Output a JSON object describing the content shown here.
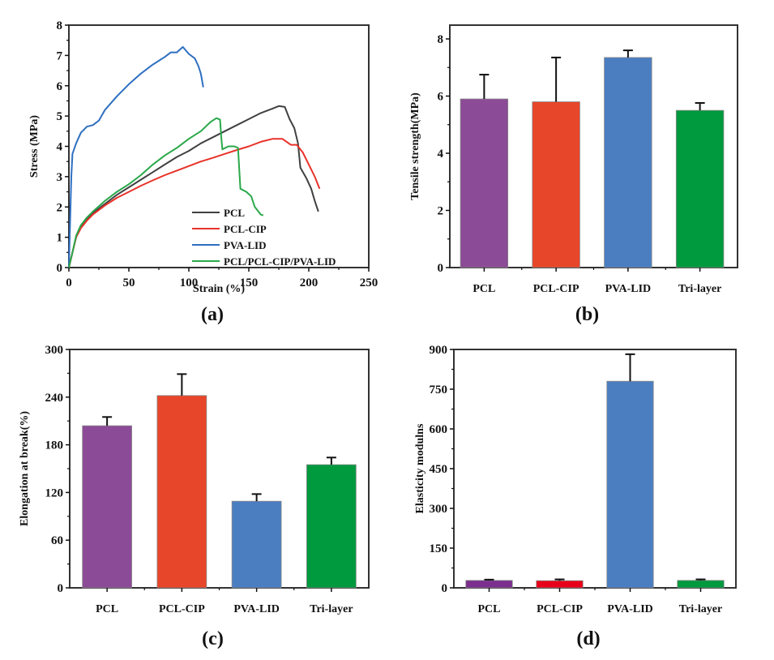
{
  "chart_data": [
    {
      "id": "a",
      "type": "line",
      "panel_label": "(a)",
      "xlabel": "Strain (%)",
      "ylabel": "Stress (MPa)",
      "xlim": [
        0,
        250
      ],
      "ylim": [
        0,
        8
      ],
      "xticks": [
        0,
        50,
        100,
        150,
        200,
        250
      ],
      "yticks": [
        0,
        1,
        2,
        3,
        4,
        5,
        6,
        7,
        8
      ],
      "legend_position": "bottom-right",
      "series": [
        {
          "name": "PCL",
          "color": "#404040",
          "points": [
            [
              0,
              0
            ],
            [
              3,
              0.5
            ],
            [
              6,
              1.0
            ],
            [
              10,
              1.35
            ],
            [
              15,
              1.6
            ],
            [
              20,
              1.8
            ],
            [
              30,
              2.1
            ],
            [
              40,
              2.4
            ],
            [
              50,
              2.65
            ],
            [
              60,
              2.9
            ],
            [
              70,
              3.15
            ],
            [
              80,
              3.4
            ],
            [
              90,
              3.65
            ],
            [
              100,
              3.85
            ],
            [
              110,
              4.1
            ],
            [
              120,
              4.3
            ],
            [
              130,
              4.5
            ],
            [
              140,
              4.7
            ],
            [
              150,
              4.9
            ],
            [
              160,
              5.1
            ],
            [
              170,
              5.25
            ],
            [
              175,
              5.33
            ],
            [
              180,
              5.3
            ],
            [
              184,
              4.9
            ],
            [
              188,
              4.6
            ],
            [
              191,
              4.1
            ],
            [
              193,
              3.3
            ],
            [
              198,
              2.95
            ],
            [
              202,
              2.6
            ],
            [
              205,
              2.2
            ],
            [
              208,
              1.85
            ]
          ]
        },
        {
          "name": "PCL-CIP",
          "color": "#e8322a",
          "points": [
            [
              0,
              0
            ],
            [
              3,
              0.5
            ],
            [
              6,
              1.0
            ],
            [
              10,
              1.3
            ],
            [
              15,
              1.55
            ],
            [
              20,
              1.75
            ],
            [
              30,
              2.05
            ],
            [
              40,
              2.3
            ],
            [
              50,
              2.5
            ],
            [
              60,
              2.7
            ],
            [
              70,
              2.88
            ],
            [
              80,
              3.05
            ],
            [
              90,
              3.2
            ],
            [
              100,
              3.35
            ],
            [
              110,
              3.5
            ],
            [
              120,
              3.62
            ],
            [
              130,
              3.75
            ],
            [
              140,
              3.88
            ],
            [
              150,
              4.0
            ],
            [
              160,
              4.15
            ],
            [
              170,
              4.25
            ],
            [
              178,
              4.25
            ],
            [
              185,
              4.05
            ],
            [
              190,
              4.05
            ],
            [
              195,
              3.8
            ],
            [
              200,
              3.4
            ],
            [
              205,
              3.0
            ],
            [
              209,
              2.6
            ]
          ]
        },
        {
          "name": "PVA-LID",
          "color": "#2e6fc0",
          "points": [
            [
              0,
              0
            ],
            [
              1,
              1.5
            ],
            [
              2,
              3.0
            ],
            [
              3,
              3.75
            ],
            [
              6,
              4.1
            ],
            [
              10,
              4.45
            ],
            [
              15,
              4.65
            ],
            [
              20,
              4.7
            ],
            [
              25,
              4.85
            ],
            [
              30,
              5.2
            ],
            [
              40,
              5.65
            ],
            [
              50,
              6.05
            ],
            [
              60,
              6.4
            ],
            [
              70,
              6.7
            ],
            [
              80,
              6.95
            ],
            [
              85,
              7.1
            ],
            [
              90,
              7.1
            ],
            [
              95,
              7.28
            ],
            [
              100,
              7.05
            ],
            [
              105,
              6.9
            ],
            [
              108,
              6.65
            ],
            [
              110,
              6.4
            ],
            [
              112,
              5.95
            ]
          ]
        },
        {
          "name": "PCL/PCL-CIP/PVA-LID",
          "color": "#2aa84a",
          "points": [
            [
              0,
              0
            ],
            [
              3,
              0.5
            ],
            [
              6,
              1.05
            ],
            [
              10,
              1.4
            ],
            [
              15,
              1.65
            ],
            [
              20,
              1.85
            ],
            [
              30,
              2.2
            ],
            [
              40,
              2.5
            ],
            [
              50,
              2.75
            ],
            [
              60,
              3.05
            ],
            [
              70,
              3.4
            ],
            [
              80,
              3.7
            ],
            [
              90,
              3.95
            ],
            [
              100,
              4.25
            ],
            [
              110,
              4.5
            ],
            [
              118,
              4.8
            ],
            [
              123,
              4.93
            ],
            [
              126,
              4.88
            ],
            [
              127,
              4.3
            ],
            [
              128,
              3.9
            ],
            [
              133,
              4.0
            ],
            [
              138,
              4.0
            ],
            [
              141,
              3.95
            ],
            [
              143,
              2.6
            ],
            [
              148,
              2.5
            ],
            [
              152,
              2.35
            ],
            [
              155,
              2.0
            ],
            [
              160,
              1.75
            ],
            [
              162,
              1.72
            ]
          ]
        }
      ]
    },
    {
      "id": "b",
      "type": "bar",
      "panel_label": "(b)",
      "xlabel": "",
      "ylabel": "Tensile strength(MPa)",
      "ylim": [
        0,
        8.6
      ],
      "yticks": [
        0,
        2,
        4,
        6,
        8
      ],
      "categories": [
        "PCL",
        "PCL-CIP",
        "PVA-LID",
        "Tri-layer"
      ],
      "values": [
        5.9,
        5.8,
        7.35,
        5.5
      ],
      "errors": [
        0.85,
        1.55,
        0.25,
        0.26
      ],
      "colors": [
        "#8c4b97",
        "#e8462a",
        "#4b7ec1",
        "#009a3e"
      ]
    },
    {
      "id": "c",
      "type": "bar",
      "panel_label": "(c)",
      "xlabel": "",
      "ylabel": "Elongation at break(%)",
      "ylim": [
        0,
        300
      ],
      "yticks": [
        0,
        60,
        120,
        180,
        240,
        300
      ],
      "categories": [
        "PCL",
        "PCL-CIP",
        "PVA-LID",
        "Tri-layer"
      ],
      "values": [
        204,
        242,
        109,
        155
      ],
      "errors": [
        11,
        27,
        9,
        9
      ],
      "colors": [
        "#8c4b97",
        "#e8462a",
        "#4b7ec1",
        "#009a3e"
      ]
    },
    {
      "id": "d",
      "type": "bar",
      "panel_label": "(d)",
      "xlabel": "",
      "ylabel": "Elasticity modulns",
      "ylim": [
        0,
        900
      ],
      "yticks": [
        0,
        150,
        300,
        450,
        600,
        750,
        900
      ],
      "categories": [
        "PCL",
        "PCL-CIP",
        "PVA-LID",
        "Tri-layer"
      ],
      "values": [
        28,
        27,
        780,
        28
      ],
      "errors": [
        3,
        5,
        102,
        4
      ],
      "colors": [
        "#7b2f8e",
        "#e8001a",
        "#4b7ec1",
        "#009a3e"
      ]
    }
  ]
}
